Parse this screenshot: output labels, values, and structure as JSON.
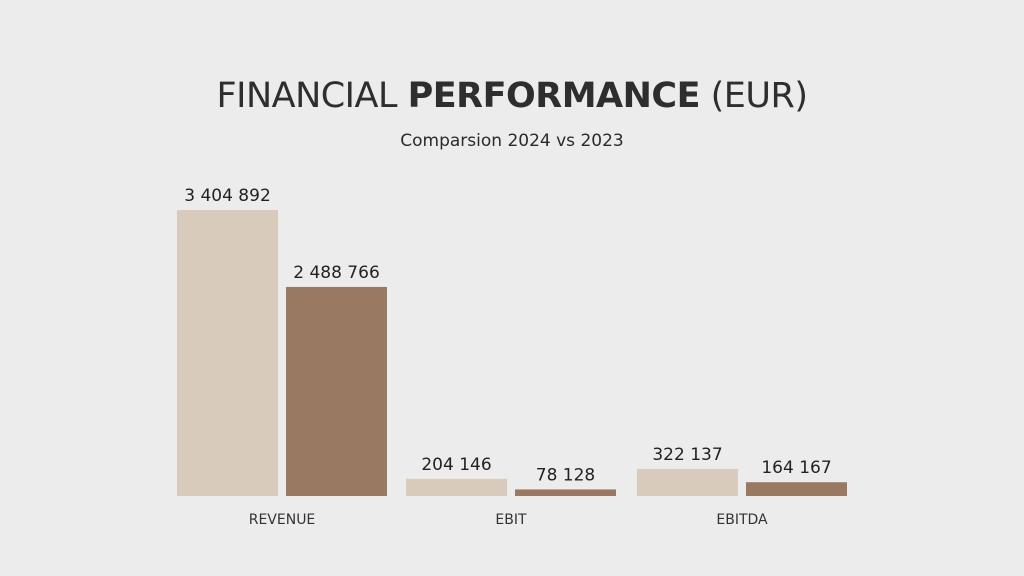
{
  "header": {
    "title_part1": "FINANCIAL ",
    "title_part2": "PERFORMANCE",
    "title_part3": " (EUR)",
    "subtitle": "Comparsion 2024 vs 2023"
  },
  "colors": {
    "series_2024": "#d9cbbb",
    "series_2023": "#9a7963",
    "background": "#ececec"
  },
  "chart_data": {
    "type": "bar",
    "title": "FINANCIAL PERFORMANCE (EUR)",
    "subtitle": "Comparsion 2024 vs 2023",
    "categories": [
      "REVENUE",
      "EBIT",
      "EBITDA"
    ],
    "series": [
      {
        "values": [
          3404892,
          204146,
          322137
        ],
        "labels": [
          "3 404 892",
          "204 146",
          "322 137"
        ]
      },
      {
        "values": [
          2488766,
          78128,
          164167
        ],
        "labels": [
          "2 488 766",
          "78 128",
          "164 167"
        ]
      }
    ],
    "ylim": [
      0,
      3404892
    ],
    "grid": false,
    "legend": "none"
  }
}
